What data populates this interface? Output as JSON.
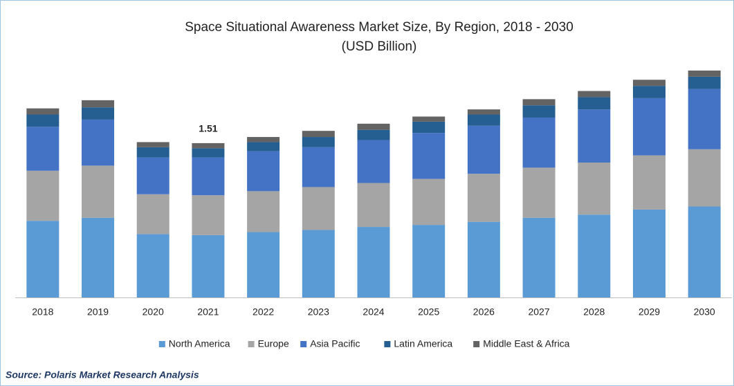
{
  "chart_data": {
    "type": "stacked_bar",
    "title": "Space Situational Awareness Market Size, By Region, 2018 - 2030",
    "subtitle": "(USD Billion)",
    "categories": [
      "2018",
      "2019",
      "2020",
      "2021",
      "2022",
      "2023",
      "2024",
      "2025",
      "2026",
      "2027",
      "2028",
      "2029",
      "2030"
    ],
    "series": [
      {
        "name": "North America",
        "color": "#5b9bd5",
        "values": [
          0.75,
          0.78,
          0.62,
          0.61,
          0.64,
          0.66,
          0.69,
          0.71,
          0.74,
          0.78,
          0.81,
          0.86,
          0.89
        ]
      },
      {
        "name": "Europe",
        "color": "#a5a5a5",
        "values": [
          0.49,
          0.51,
          0.39,
          0.39,
          0.4,
          0.42,
          0.43,
          0.45,
          0.47,
          0.49,
          0.51,
          0.53,
          0.56
        ]
      },
      {
        "name": "Asia Pacific",
        "color": "#4472c4",
        "values": [
          0.43,
          0.45,
          0.36,
          0.37,
          0.39,
          0.39,
          0.42,
          0.45,
          0.47,
          0.49,
          0.52,
          0.56,
          0.59
        ]
      },
      {
        "name": "Latin America",
        "color": "#255e91",
        "values": [
          0.12,
          0.12,
          0.1,
          0.09,
          0.09,
          0.1,
          0.1,
          0.11,
          0.11,
          0.12,
          0.12,
          0.12,
          0.12
        ]
      },
      {
        "name": "Middle East & Africa",
        "color": "#636363",
        "values": [
          0.06,
          0.07,
          0.05,
          0.05,
          0.05,
          0.06,
          0.06,
          0.05,
          0.05,
          0.06,
          0.06,
          0.06,
          0.06
        ]
      }
    ],
    "annotations": [
      {
        "category": "2021",
        "value": 1.51
      }
    ],
    "source": "Source: Polaris Market Research Analysis"
  }
}
